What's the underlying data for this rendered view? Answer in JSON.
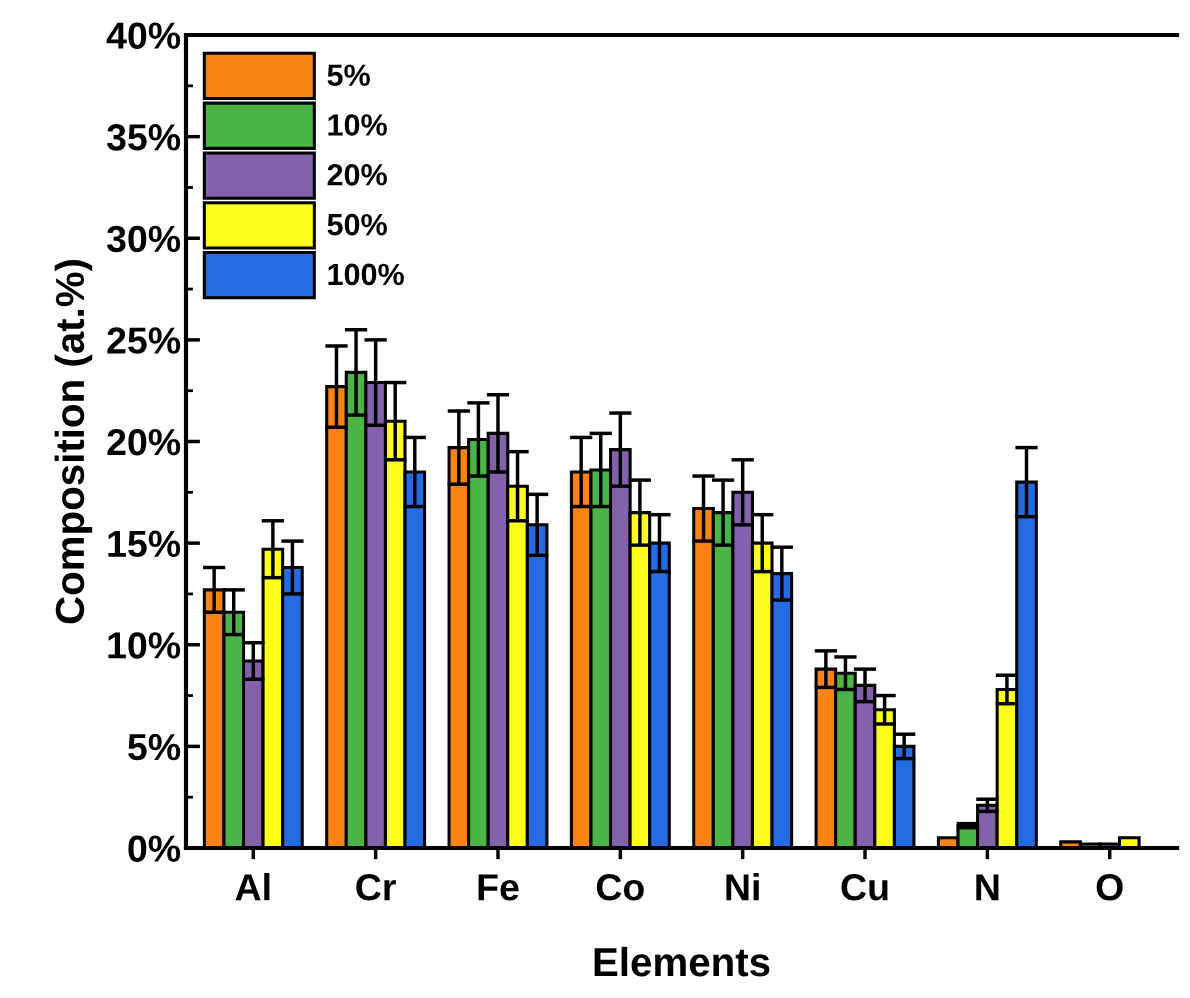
{
  "chart_data": {
    "type": "bar",
    "xlabel": "Elements",
    "ylabel": "Composition (at.%)",
    "categories": [
      "Al",
      "Cr",
      "Fe",
      "Co",
      "Ni",
      "Cu",
      "N",
      "O"
    ],
    "series": [
      {
        "name": "5%",
        "color": "#fb8315",
        "values": [
          12.7,
          22.7,
          19.7,
          18.5,
          16.7,
          8.8,
          0.5,
          0.3
        ],
        "errors": [
          1.1,
          2.0,
          1.8,
          1.7,
          1.6,
          0.9,
          null,
          null
        ]
      },
      {
        "name": "10%",
        "color": "#4ab546",
        "values": [
          11.6,
          23.4,
          20.1,
          18.6,
          16.5,
          8.6,
          1.1,
          0.2
        ],
        "errors": [
          1.1,
          2.1,
          1.8,
          1.8,
          1.6,
          0.8,
          0.1,
          null
        ]
      },
      {
        "name": "20%",
        "color": "#8361ab",
        "values": [
          9.2,
          22.9,
          20.4,
          19.6,
          17.5,
          8.0,
          2.1,
          0.2
        ],
        "errors": [
          0.9,
          2.1,
          1.9,
          1.8,
          1.6,
          0.8,
          0.3,
          null
        ]
      },
      {
        "name": "50%",
        "color": "#fefd1b",
        "values": [
          14.7,
          21.0,
          17.8,
          16.5,
          15.0,
          6.8,
          7.8,
          0.5
        ],
        "errors": [
          1.4,
          1.9,
          1.7,
          1.6,
          1.4,
          0.7,
          0.7,
          null
        ]
      },
      {
        "name": "100%",
        "color": "#256ce4",
        "values": [
          13.8,
          18.5,
          15.9,
          15.0,
          13.5,
          5.0,
          18.0,
          null
        ],
        "errors": [
          1.3,
          1.7,
          1.5,
          1.4,
          1.3,
          0.6,
          1.7,
          null
        ]
      }
    ],
    "ylim": [
      0,
      40
    ],
    "yticks": [
      {
        "value": 0,
        "label": "0%"
      },
      {
        "value": 5,
        "label": "5%"
      },
      {
        "value": 10,
        "label": "10%"
      },
      {
        "value": 15,
        "label": "15%"
      },
      {
        "value": 20,
        "label": "20%"
      },
      {
        "value": 25,
        "label": "25%"
      },
      {
        "value": 30,
        "label": "30%"
      },
      {
        "value": 35,
        "label": "35%"
      },
      {
        "value": 40,
        "label": "40%"
      }
    ],
    "grid": false,
    "legend": "top left"
  }
}
